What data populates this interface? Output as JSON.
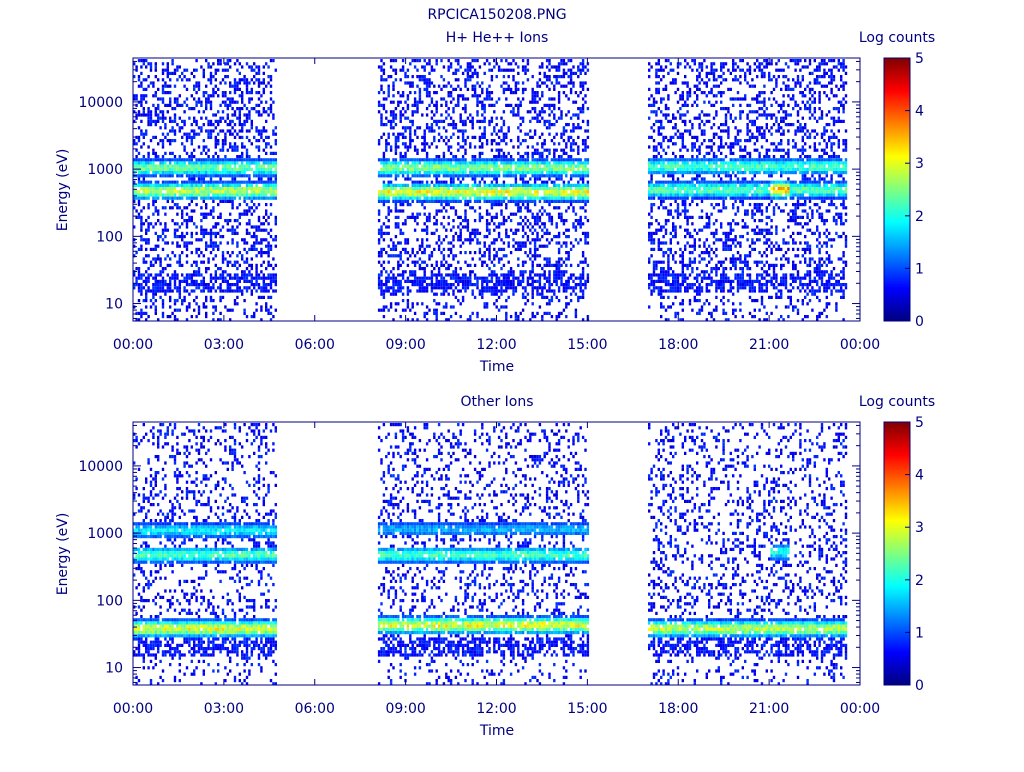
{
  "page": {
    "title": "RPCICA150208.PNG"
  },
  "style": {
    "text_color": "#000080",
    "frame_color": "#000080",
    "background": "#ffffff"
  },
  "chart_data": [
    {
      "type": "heatmap",
      "title": "H+ He++ Ions",
      "xlabel": "Time",
      "ylabel": "Energy (eV)",
      "y_scale": "log",
      "xlim": [
        "00:00",
        "24:00"
      ],
      "ylim": [
        5.5,
        45000
      ],
      "xticks": [
        "00:00",
        "03:00",
        "06:00",
        "09:00",
        "12:00",
        "15:00",
        "18:00",
        "21:00",
        "00:00"
      ],
      "yticks": [
        {
          "value": 10,
          "label": "10"
        },
        {
          "value": 100,
          "label": "100"
        },
        {
          "value": 1000,
          "label": "1000"
        },
        {
          "value": 10000,
          "label": "10000"
        }
      ],
      "colorbar": {
        "label": "Log counts",
        "min": 0,
        "max": 5,
        "ticks": [
          "0",
          "1",
          "2",
          "3",
          "4",
          "5"
        ]
      },
      "data_intervals": [
        [
          "00:00",
          "04:45"
        ],
        [
          "08:05",
          "15:00"
        ],
        [
          "17:00",
          "23:30"
        ]
      ],
      "bands": [
        {
          "time": [
            "00:00",
            "04:45"
          ],
          "energy": 1100,
          "level": 2.4
        },
        {
          "time": [
            "00:00",
            "04:45"
          ],
          "energy": 500,
          "level": 2.8
        },
        {
          "time": [
            "08:05",
            "15:00"
          ],
          "energy": 1100,
          "level": 2.5
        },
        {
          "time": [
            "08:05",
            "15:00"
          ],
          "energy": 480,
          "level": 3.0
        },
        {
          "time": [
            "17:00",
            "23:30"
          ],
          "energy": 1150,
          "level": 2.2
        },
        {
          "time": [
            "17:00",
            "23:30"
          ],
          "energy": 520,
          "level": 2.3
        },
        {
          "time": [
            "21:00",
            "21:40"
          ],
          "energy": 520,
          "level": 3.5
        }
      ],
      "background_level": 0.6
    },
    {
      "type": "heatmap",
      "title": "Other Ions",
      "xlabel": "Time",
      "ylabel": "Energy (eV)",
      "y_scale": "log",
      "xlim": [
        "00:00",
        "24:00"
      ],
      "ylim": [
        5.5,
        45000
      ],
      "xticks": [
        "00:00",
        "03:00",
        "06:00",
        "09:00",
        "12:00",
        "15:00",
        "18:00",
        "21:00",
        "00:00"
      ],
      "yticks": [
        {
          "value": 10,
          "label": "10"
        },
        {
          "value": 100,
          "label": "100"
        },
        {
          "value": 1000,
          "label": "1000"
        },
        {
          "value": 10000,
          "label": "10000"
        }
      ],
      "colorbar": {
        "label": "Log counts",
        "min": 0,
        "max": 5,
        "ticks": [
          "0",
          "1",
          "2",
          "3",
          "4",
          "5"
        ]
      },
      "data_intervals": [
        [
          "00:00",
          "04:45"
        ],
        [
          "08:05",
          "15:00"
        ],
        [
          "17:00",
          "23:30"
        ]
      ],
      "bands": [
        {
          "time": [
            "00:00",
            "04:45"
          ],
          "energy": 40,
          "level": 3.0
        },
        {
          "time": [
            "00:00",
            "04:45"
          ],
          "energy": 1150,
          "level": 1.8
        },
        {
          "time": [
            "00:00",
            "04:45"
          ],
          "energy": 500,
          "level": 2.2
        },
        {
          "time": [
            "08:05",
            "15:00"
          ],
          "energy": 45,
          "level": 3.0
        },
        {
          "time": [
            "08:05",
            "15:00"
          ],
          "energy": 500,
          "level": 2.2
        },
        {
          "time": [
            "08:05",
            "15:00"
          ],
          "energy": 1200,
          "level": 1.5
        },
        {
          "time": [
            "17:00",
            "23:30"
          ],
          "energy": 40,
          "level": 2.8
        },
        {
          "time": [
            "21:00",
            "21:40"
          ],
          "energy": 550,
          "level": 2.0
        }
      ],
      "background_level": 0.4
    }
  ]
}
